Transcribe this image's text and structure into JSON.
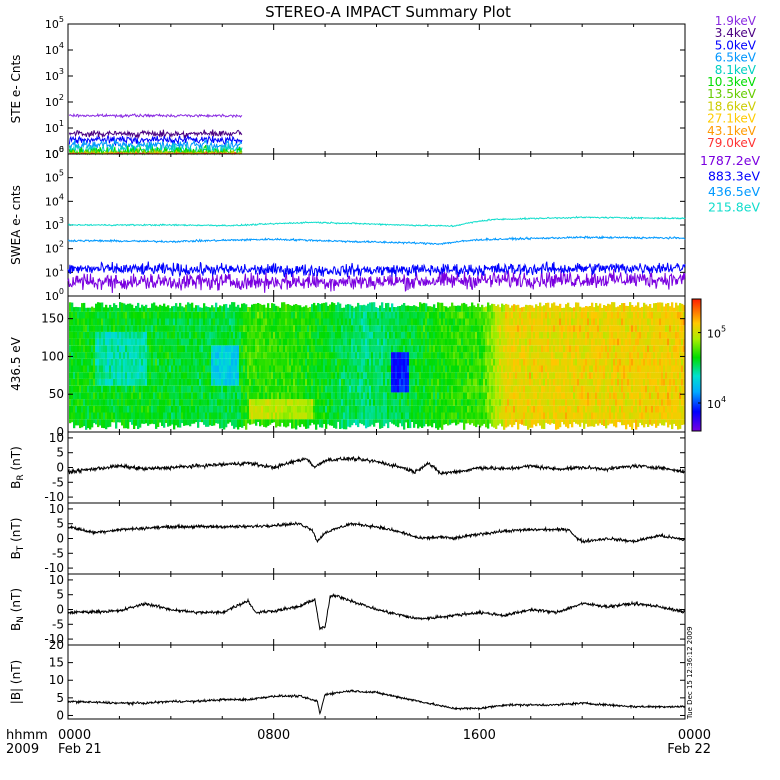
{
  "title": "STEREO-A IMPACT Summary Plot",
  "timestamp": "Tue Dec 15 12:36:12 2009",
  "x_axis": {
    "ticks": [
      "0000",
      "0800",
      "1600",
      "0000"
    ],
    "dates": [
      "Feb 21",
      "",
      "",
      "Feb 22"
    ],
    "row_label_top": "hhmm",
    "row_label_bottom": "2009"
  },
  "colors": {
    "ste": [
      "#8a2be2",
      "#4b0082",
      "#0000ff",
      "#0096ff",
      "#00d0c0",
      "#00dd00",
      "#66cc00",
      "#cccc00",
      "#ffcc00",
      "#ff9900",
      "#ff3333"
    ],
    "swea": [
      "#7a00e0",
      "#0000ff",
      "#0099ff",
      "#11ddcc"
    ],
    "trace": "#000000"
  },
  "chart_data": [
    {
      "type": "line",
      "name": "ste",
      "ylabel": "STE e- Cnts",
      "yscale": "log",
      "ylim": [
        1,
        100000
      ],
      "yticks": [
        {
          "value": 1,
          "mant": "10",
          "exp": "0"
        },
        {
          "value": 10,
          "mant": "10",
          "exp": "1"
        },
        {
          "value": 100,
          "mant": "10",
          "exp": "2"
        },
        {
          "value": 1000,
          "mant": "10",
          "exp": "3"
        },
        {
          "value": 10000,
          "mant": "10",
          "exp": "4"
        },
        {
          "value": 100000,
          "mant": "10",
          "exp": "5"
        }
      ],
      "xlim_hours": [
        0,
        24
      ],
      "data_end_hours": 6.8,
      "series": [
        {
          "name": "1.9keV",
          "level": 30,
          "noise": 0.05
        },
        {
          "name": "3.4keV",
          "level": 6,
          "noise": 0.12
        },
        {
          "name": "5.0keV",
          "level": 3.5,
          "noise": 0.15
        },
        {
          "name": "6.5keV",
          "level": 2.2,
          "noise": 0.18
        },
        {
          "name": "8.1keV",
          "level": 1.5,
          "noise": 0.2
        },
        {
          "name": "10.3keV",
          "level": 1.2,
          "noise": 0.2
        },
        {
          "name": "13.5keV",
          "level": 1.05,
          "noise": 0.15
        },
        {
          "name": "18.6keV",
          "level": 1.02,
          "noise": 0.1
        },
        {
          "name": "27.1keV",
          "level": 1.0,
          "noise": 0.05
        },
        {
          "name": "43.1keV",
          "level": 1.0,
          "noise": 0.05
        },
        {
          "name": "79.0keV",
          "level": 1.0,
          "noise": 0.05
        }
      ]
    },
    {
      "type": "line",
      "name": "swea",
      "ylabel": "SWEA e- cnts",
      "yscale": "log",
      "ylim": [
        1,
        1000000
      ],
      "yticks": [
        {
          "value": 1,
          "mant": "10",
          "exp": "0"
        },
        {
          "value": 10,
          "mant": "10",
          "exp": "1"
        },
        {
          "value": 100,
          "mant": "10",
          "exp": "2"
        },
        {
          "value": 1000,
          "mant": "10",
          "exp": "3"
        },
        {
          "value": 10000,
          "mant": "10",
          "exp": "4"
        },
        {
          "value": 100000,
          "mant": "10",
          "exp": "5"
        },
        {
          "value": 1000000,
          "mant": "10",
          "exp": "6"
        }
      ],
      "xlim_hours": [
        0,
        24
      ],
      "series": [
        {
          "name": "1787.2eV",
          "noise": 0.35,
          "points": [
            [
              0,
              4
            ],
            [
              6,
              4
            ],
            [
              12,
              4
            ],
            [
              18,
              5
            ],
            [
              24,
              5
            ]
          ]
        },
        {
          "name": "883.3eV",
          "noise": 0.25,
          "points": [
            [
              0,
              14
            ],
            [
              6,
              13
            ],
            [
              10,
              12
            ],
            [
              16,
              13
            ],
            [
              24,
              16
            ]
          ]
        },
        {
          "name": "436.5eV",
          "noise": 0.04,
          "points": [
            [
              0,
              220
            ],
            [
              4,
              200
            ],
            [
              8,
              250
            ],
            [
              11,
              200
            ],
            [
              13,
              180
            ],
            [
              14.5,
              160
            ],
            [
              16,
              240
            ],
            [
              20,
              300
            ],
            [
              24,
              280
            ]
          ]
        },
        {
          "name": "215.8eV",
          "noise": 0.03,
          "points": [
            [
              0,
              1000
            ],
            [
              4,
              1000
            ],
            [
              6.5,
              950
            ],
            [
              9.5,
              1300
            ],
            [
              13,
              1000
            ],
            [
              15,
              900
            ],
            [
              16.5,
              1700
            ],
            [
              20,
              2100
            ],
            [
              24,
              1900
            ]
          ]
        }
      ]
    },
    {
      "type": "heatmap",
      "name": "pad",
      "ylabel": "436.5 eV",
      "ylim": [
        0,
        180
      ],
      "yticks": [
        0,
        50,
        100,
        150
      ],
      "xlim_hours": [
        0,
        24
      ],
      "colorbar": {
        "range": [
          4000,
          300000
        ],
        "ticks": [
          {
            "value": 10000,
            "mant": "10",
            "exp": "4"
          },
          {
            "value": 100000,
            "mant": "10",
            "exp": "5"
          }
        ]
      },
      "levels": [
        [
          0,
          0.56
        ],
        [
          6.5,
          0.52
        ],
        [
          7,
          0.6
        ],
        [
          9,
          0.58
        ],
        [
          11.5,
          0.48
        ],
        [
          13,
          0.52
        ],
        [
          14.5,
          0.58
        ],
        [
          16,
          0.6
        ],
        [
          17,
          0.78
        ],
        [
          24,
          0.8
        ]
      ],
      "features": [
        {
          "t0": 1,
          "t1": 3,
          "a0": 60,
          "a1": 130,
          "d": -0.1
        },
        {
          "t0": 5.5,
          "t1": 6.6,
          "a0": 60,
          "a1": 110,
          "d": -0.14
        },
        {
          "t0": 12.5,
          "t1": 13.2,
          "a0": 50,
          "a1": 100,
          "d": -0.35
        },
        {
          "t0": 7,
          "t1": 9.5,
          "a0": 10,
          "a1": 40,
          "d": 0.14
        }
      ]
    },
    {
      "type": "line",
      "name": "br",
      "ylabel_main": "B",
      "ylabel_sub": "R",
      "ylabel_tail": " (nT)",
      "ylim": [
        -12,
        12
      ],
      "yticks": [
        -10,
        -5,
        0,
        5,
        10
      ],
      "noise": 0.6,
      "points": [
        [
          0,
          -1.5
        ],
        [
          1,
          -0.5
        ],
        [
          2,
          0.5
        ],
        [
          3,
          -0.5
        ],
        [
          4,
          0
        ],
        [
          5,
          0.5
        ],
        [
          6,
          1
        ],
        [
          7,
          1.5
        ],
        [
          8,
          0
        ],
        [
          9,
          2.5
        ],
        [
          9.3,
          3
        ],
        [
          9.6,
          0
        ],
        [
          10,
          2.5
        ],
        [
          11,
          3
        ],
        [
          12,
          2
        ],
        [
          13,
          0
        ],
        [
          13.5,
          -1.5
        ],
        [
          14,
          1.5
        ],
        [
          14.5,
          -2
        ],
        [
          15.5,
          -1
        ],
        [
          16,
          0
        ],
        [
          17,
          -0.5
        ],
        [
          18,
          0.5
        ],
        [
          19,
          -0.5
        ],
        [
          20,
          0
        ],
        [
          21,
          -0.5
        ],
        [
          22,
          0.5
        ],
        [
          23,
          0
        ],
        [
          24,
          -1.5
        ]
      ]
    },
    {
      "type": "line",
      "name": "bt",
      "ylabel_main": "B",
      "ylabel_sub": "T",
      "ylabel_tail": " (nT)",
      "ylim": [
        -12,
        12
      ],
      "yticks": [
        -10,
        -5,
        0,
        5,
        10
      ],
      "noise": 0.5,
      "points": [
        [
          0,
          4
        ],
        [
          1,
          2
        ],
        [
          2,
          3
        ],
        [
          3,
          3.5
        ],
        [
          4,
          4
        ],
        [
          5,
          4
        ],
        [
          6,
          4
        ],
        [
          7,
          4
        ],
        [
          8,
          4.5
        ],
        [
          9,
          5
        ],
        [
          9.5,
          3
        ],
        [
          9.7,
          -1
        ],
        [
          10,
          2
        ],
        [
          11,
          5
        ],
        [
          12,
          4
        ],
        [
          13,
          2
        ],
        [
          13.7,
          0
        ],
        [
          14.5,
          0.5
        ],
        [
          15,
          0
        ],
        [
          16,
          1.5
        ],
        [
          17,
          2.5
        ],
        [
          18,
          3
        ],
        [
          19.5,
          3
        ],
        [
          19.8,
          0
        ],
        [
          20,
          -1
        ],
        [
          21,
          0
        ],
        [
          22,
          -1
        ],
        [
          23,
          1
        ],
        [
          24,
          -0.5
        ]
      ]
    },
    {
      "type": "line",
      "name": "bn",
      "ylabel_main": "B",
      "ylabel_sub": "N",
      "ylabel_tail": " (nT)",
      "ylim": [
        -12,
        12
      ],
      "yticks": [
        -10,
        -5,
        0,
        5,
        10
      ],
      "noise": 0.5,
      "points": [
        [
          0,
          -1
        ],
        [
          2,
          -0.5
        ],
        [
          3,
          2
        ],
        [
          4,
          0
        ],
        [
          5,
          -1
        ],
        [
          6,
          -1
        ],
        [
          7,
          3
        ],
        [
          7.3,
          -1
        ],
        [
          8,
          -0.5
        ],
        [
          9,
          1
        ],
        [
          9.6,
          3.5
        ],
        [
          9.8,
          -6.5
        ],
        [
          10,
          -6
        ],
        [
          10.2,
          4.5
        ],
        [
          10.5,
          4.5
        ],
        [
          11,
          3
        ],
        [
          12,
          0
        ],
        [
          13,
          -2
        ],
        [
          13.5,
          -3
        ],
        [
          14,
          -3
        ],
        [
          15,
          -2
        ],
        [
          16,
          -1
        ],
        [
          17,
          -2
        ],
        [
          18,
          0
        ],
        [
          19,
          -1
        ],
        [
          20,
          2
        ],
        [
          21,
          1
        ],
        [
          22,
          2
        ],
        [
          23,
          1
        ],
        [
          24,
          -1
        ]
      ]
    },
    {
      "type": "line",
      "name": "bmag",
      "ylabel": "|B| (nT)",
      "ylim": [
        -1,
        20
      ],
      "yticks": [
        0,
        5,
        10,
        15,
        20
      ],
      "noise": 0.3,
      "points": [
        [
          0,
          4
        ],
        [
          2,
          3.5
        ],
        [
          3,
          3.5
        ],
        [
          4,
          4
        ],
        [
          5,
          4
        ],
        [
          6,
          4.5
        ],
        [
          7,
          4.5
        ],
        [
          8,
          5.5
        ],
        [
          9,
          5.5
        ],
        [
          9.7,
          4
        ],
        [
          9.8,
          0.5
        ],
        [
          10,
          6
        ],
        [
          11,
          7
        ],
        [
          12,
          6.5
        ],
        [
          13,
          5
        ],
        [
          14,
          3.5
        ],
        [
          15,
          2
        ],
        [
          16,
          2
        ],
        [
          17,
          3
        ],
        [
          18,
          3
        ],
        [
          19,
          3
        ],
        [
          20,
          3.5
        ],
        [
          21,
          3
        ],
        [
          22,
          2.5
        ],
        [
          23,
          2.5
        ],
        [
          24,
          2.5
        ]
      ]
    }
  ]
}
